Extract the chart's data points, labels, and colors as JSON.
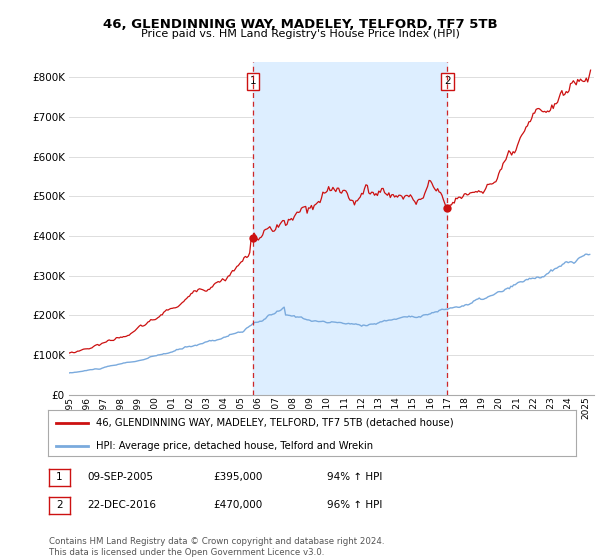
{
  "title1": "46, GLENDINNING WAY, MADELEY, TELFORD, TF7 5TB",
  "title2": "Price paid vs. HM Land Registry's House Price Index (HPI)",
  "legend_line1": "46, GLENDINNING WAY, MADELEY, TELFORD, TF7 5TB (detached house)",
  "legend_line2": "HPI: Average price, detached house, Telford and Wrekin",
  "footer": "Contains HM Land Registry data © Crown copyright and database right 2024.\nThis data is licensed under the Open Government Licence v3.0.",
  "sale1_date": "09-SEP-2005",
  "sale1_price": "£395,000",
  "sale1_hpi": "94% ↑ HPI",
  "sale1_x": 2005.69,
  "sale1_y": 395000,
  "sale2_date": "22-DEC-2016",
  "sale2_price": "£470,000",
  "sale2_hpi": "96% ↑ HPI",
  "sale2_x": 2016.98,
  "sale2_y": 470000,
  "vline1_x": 2005.69,
  "vline2_x": 2016.98,
  "ylim": [
    0,
    840000
  ],
  "xlim_start": 1995.0,
  "xlim_end": 2025.5,
  "hpi_color": "#7aaadd",
  "price_color": "#cc1111",
  "vline_color": "#cc1111",
  "grid_color": "#dddddd",
  "shade_color": "#ddeeff",
  "bg_color": "#ffffff"
}
